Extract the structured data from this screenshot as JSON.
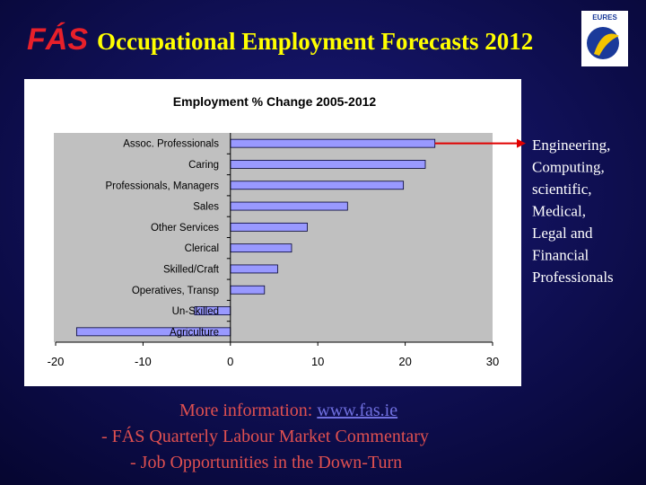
{
  "logo": "FÁS",
  "title": "Occupational Employment Forecasts 2012",
  "eures_logo": "EURES",
  "chart_data": {
    "type": "hbar",
    "title": "Employment % Change 2005-2012",
    "categories": [
      "Assoc. Professionals",
      "Caring",
      "Professionals, Managers",
      "Sales",
      "Other Services",
      "Clerical",
      "Skilled/Craft",
      "Operatives, Transp",
      "Un-Skilled",
      "Agriculture"
    ],
    "values": [
      23.4,
      22.3,
      19.8,
      13.4,
      8.8,
      7.0,
      5.4,
      3.9,
      -4.1,
      -17.6
    ],
    "color": "#9999ff",
    "xlim": [
      -20,
      30
    ],
    "xticks": [
      -20,
      -10,
      0,
      10,
      20,
      30
    ],
    "annotation": [
      "Engineering,",
      "Computing,",
      "scientific,",
      "Medical,",
      "Legal and",
      "Financial",
      "Professionals"
    ]
  },
  "footer": {
    "info_label": "More information:",
    "link": "www.fas.ie",
    "lines": [
      "-  FÁS Quarterly Labour Market Commentary",
      "-  Job Opportunities in the Down-Turn"
    ]
  }
}
